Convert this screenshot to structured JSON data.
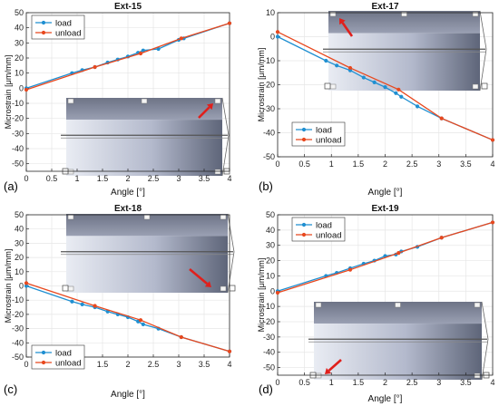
{
  "figure": {
    "panel_labels": [
      "(a)",
      "(b)",
      "(c)",
      "(d)"
    ]
  },
  "colors": {
    "load": "#1f8fd1",
    "unload": "#e8481e",
    "arrow": "#e0201c",
    "grid": "#e6e6e6",
    "axis": "#262626"
  },
  "chart_data": [
    {
      "type": "line",
      "title": "Ext-15",
      "xlabel": "Angle [°]",
      "ylabel": "Microstrain [μm/mm]",
      "xlim": [
        0,
        4
      ],
      "ylim": [
        -55,
        50
      ],
      "xticks": [
        0,
        0.5,
        1,
        1.5,
        2,
        2.5,
        3,
        3.5,
        4
      ],
      "yticks": [
        -50,
        -40,
        -30,
        -20,
        -10,
        0,
        10,
        20,
        30,
        40,
        50
      ],
      "legend_position": "top-left",
      "grid": true,
      "inset_arrow": "upper-right",
      "series": [
        {
          "name": "load",
          "color": "#1f8fd1",
          "x": [
            0,
            0.9,
            1.1,
            1.35,
            1.6,
            1.8,
            2.0,
            2.2,
            2.3,
            2.6,
            3.0,
            3.1,
            4.0
          ],
          "y": [
            0,
            10,
            12,
            14,
            17,
            19,
            21,
            23.5,
            25,
            26,
            32,
            33,
            43
          ]
        },
        {
          "name": "unload",
          "color": "#e8481e",
          "x": [
            0,
            1.35,
            2.25,
            3.05,
            4.0
          ],
          "y": [
            -1,
            14,
            23,
            33,
            43
          ]
        }
      ]
    },
    {
      "type": "line",
      "title": "Ext-17",
      "xlabel": "Angle [°]",
      "ylabel": "Microstrain [μm/mm]",
      "xlim": [
        0,
        4
      ],
      "ylim": [
        -50,
        10
      ],
      "xticks": [
        0,
        0.5,
        1,
        1.5,
        2,
        2.5,
        3,
        3.5,
        4
      ],
      "yticks": [
        -50,
        -40,
        -30,
        -20,
        -10,
        0,
        10
      ],
      "legend_position": "bottom-left",
      "grid": true,
      "inset_arrow": "upper-left",
      "series": [
        {
          "name": "load",
          "color": "#1f8fd1",
          "x": [
            0,
            0.9,
            1.1,
            1.35,
            1.6,
            1.8,
            2.0,
            2.2,
            2.3,
            2.6,
            3.05,
            4.0
          ],
          "y": [
            0,
            -10,
            -12,
            -14,
            -17,
            -19,
            -21,
            -23.5,
            -25,
            -29,
            -34,
            -43
          ]
        },
        {
          "name": "unload",
          "color": "#e8481e",
          "x": [
            0,
            1.35,
            2.25,
            3.05,
            4.0
          ],
          "y": [
            2,
            -13,
            -22,
            -34,
            -43
          ]
        }
      ]
    },
    {
      "type": "line",
      "title": "Ext-18",
      "xlabel": "Angle [°]",
      "ylabel": "Microstrain [μm/mm]",
      "xlim": [
        0,
        4
      ],
      "ylim": [
        -50,
        50
      ],
      "xticks": [
        0,
        0.5,
        1,
        1.5,
        2,
        2.5,
        3,
        3.5,
        4
      ],
      "yticks": [
        -50,
        -40,
        -30,
        -20,
        -10,
        0,
        10,
        20,
        30,
        40,
        50
      ],
      "legend_position": "bottom-left",
      "grid": true,
      "inset_arrow": "lower-right",
      "series": [
        {
          "name": "load",
          "color": "#1f8fd1",
          "x": [
            0,
            0.9,
            1.1,
            1.35,
            1.6,
            1.8,
            2.0,
            2.2,
            2.3,
            2.6,
            3.05,
            4.0
          ],
          "y": [
            0,
            -11,
            -13,
            -15,
            -18,
            -20,
            -22,
            -25,
            -27,
            -30,
            -36,
            -46
          ]
        },
        {
          "name": "unload",
          "color": "#e8481e",
          "x": [
            0,
            1.35,
            2.25,
            3.05,
            4.0
          ],
          "y": [
            2,
            -14,
            -24,
            -36,
            -46
          ]
        }
      ]
    },
    {
      "type": "line",
      "title": "Ext-19",
      "xlabel": "Angle [°]",
      "ylabel": "Microstrain [μm/mm]",
      "xlim": [
        0,
        4
      ],
      "ylim": [
        -55,
        50
      ],
      "xticks": [
        0,
        0.5,
        1,
        1.5,
        2,
        2.5,
        3,
        3.5,
        4
      ],
      "yticks": [
        -50,
        -40,
        -30,
        -20,
        -10,
        0,
        10,
        20,
        30,
        40,
        50
      ],
      "legend_position": "top-left",
      "grid": true,
      "inset_arrow": "lower-left",
      "series": [
        {
          "name": "load",
          "color": "#1f8fd1",
          "x": [
            0,
            0.9,
            1.1,
            1.35,
            1.6,
            1.8,
            2.0,
            2.2,
            2.3,
            2.6,
            3.05,
            4.0
          ],
          "y": [
            0,
            10,
            12,
            15,
            18,
            20,
            23,
            24,
            26,
            29,
            35,
            45
          ]
        },
        {
          "name": "unload",
          "color": "#e8481e",
          "x": [
            0,
            1.35,
            2.25,
            3.05,
            4.0
          ],
          "y": [
            -1,
            14,
            25,
            35,
            45
          ]
        }
      ]
    }
  ]
}
